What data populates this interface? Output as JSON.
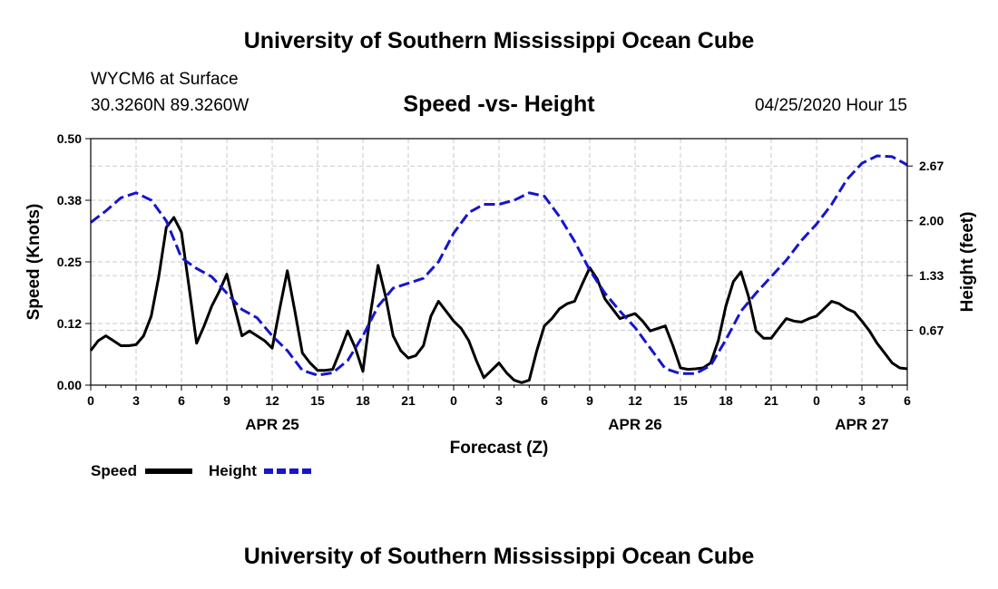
{
  "header": {
    "title": "University of Southern Mississippi Ocean Cube",
    "station": "WYCM6 at Surface",
    "coords": "30.3260N 89.3260W",
    "subtitle": "Speed -vs- Height",
    "datetime": "04/25/2020 Hour 15"
  },
  "footer": {
    "title": "University of Southern Mississippi Ocean Cube"
  },
  "colors": {
    "speed": "#000000",
    "height": "#1515cc",
    "grid": "#c8c8c8"
  },
  "chart_data": {
    "type": "line",
    "title": "Speed -vs- Height",
    "xlabel": "Forecast (Z)",
    "ylabel_left": "Speed (Knots)",
    "ylabel_right": "Height (feet)",
    "xlim": [
      0,
      54
    ],
    "ylim_left": [
      0,
      0.5
    ],
    "ylim_right": [
      0,
      3.0
    ],
    "x_ticks": [
      0,
      3,
      6,
      9,
      12,
      15,
      18,
      21,
      24,
      27,
      30,
      33,
      36,
      39,
      42,
      45,
      48,
      51,
      54
    ],
    "x_tick_labels": [
      "0",
      "3",
      "6",
      "9",
      "12",
      "15",
      "18",
      "21",
      "0",
      "3",
      "6",
      "9",
      "12",
      "15",
      "18",
      "21",
      "0",
      "3",
      "6"
    ],
    "date_labels": [
      {
        "x": 12,
        "label": "APR 25"
      },
      {
        "x": 36,
        "label": "APR 26"
      },
      {
        "x": 51,
        "label": "APR 27"
      }
    ],
    "y_left_ticks": [
      0,
      0.125,
      0.25,
      0.375,
      0.5
    ],
    "y_left_tick_labels": [
      "0.00",
      "0.12",
      "0.25",
      "0.38",
      "0.50"
    ],
    "y_right_ticks": [
      0.667,
      1.333,
      2.0,
      2.667
    ],
    "y_right_tick_labels": [
      "0.67",
      "1.33",
      "2.00",
      "2.67"
    ],
    "grid": true,
    "legend": [
      "Speed",
      "Height"
    ],
    "legend_position": "bottom-left",
    "series": [
      {
        "name": "Speed",
        "axis": "left",
        "style": "solid",
        "x": [
          0,
          0.5,
          1,
          1.5,
          2,
          2.5,
          3,
          3.5,
          4,
          4.5,
          5,
          5.5,
          6,
          6.5,
          7,
          7.5,
          8,
          8.5,
          9,
          9.5,
          10,
          10.5,
          11,
          11.5,
          12,
          12.5,
          13,
          13.5,
          14,
          14.5,
          15,
          15.5,
          16,
          16.5,
          17,
          17.5,
          18,
          18.5,
          19,
          19.5,
          20,
          20.5,
          21,
          21.5,
          22,
          22.5,
          23,
          23.5,
          24,
          24.5,
          25,
          25.5,
          26,
          26.5,
          27,
          27.5,
          28,
          28.5,
          29,
          29.5,
          30,
          30.5,
          31,
          31.5,
          32,
          32.5,
          33,
          33.5,
          34,
          34.5,
          35,
          35.5,
          36,
          36.5,
          37,
          37.5,
          38,
          38.5,
          39,
          39.5,
          40,
          40.5,
          41,
          41.5,
          42,
          42.5,
          43,
          43.5,
          44,
          44.5,
          45,
          45.5,
          46,
          46.5,
          47,
          47.5,
          48,
          48.5,
          49,
          49.5,
          50,
          50.5,
          51,
          51.5,
          52,
          52.5,
          53,
          53.5,
          54
        ],
        "values": [
          0.07,
          0.09,
          0.1,
          0.09,
          0.08,
          0.08,
          0.082,
          0.1,
          0.14,
          0.22,
          0.32,
          0.34,
          0.31,
          0.2,
          0.085,
          0.12,
          0.16,
          0.19,
          0.225,
          0.16,
          0.1,
          0.11,
          0.1,
          0.09,
          0.075,
          0.155,
          0.232,
          0.15,
          0.065,
          0.045,
          0.03,
          0.03,
          0.032,
          0.07,
          0.11,
          0.075,
          0.028,
          0.145,
          0.243,
          0.18,
          0.1,
          0.07,
          0.055,
          0.06,
          0.08,
          0.14,
          0.17,
          0.15,
          0.13,
          0.115,
          0.09,
          0.05,
          0.015,
          0.03,
          0.045,
          0.025,
          0.01,
          0.005,
          0.01,
          0.07,
          0.12,
          0.135,
          0.155,
          0.165,
          0.17,
          0.205,
          0.238,
          0.215,
          0.175,
          0.155,
          0.135,
          0.14,
          0.145,
          0.13,
          0.11,
          0.115,
          0.12,
          0.08,
          0.035,
          0.032,
          0.033,
          0.035,
          0.045,
          0.09,
          0.16,
          0.21,
          0.23,
          0.18,
          0.11,
          0.095,
          0.095,
          0.115,
          0.135,
          0.13,
          0.128,
          0.135,
          0.14,
          0.155,
          0.17,
          0.165,
          0.155,
          0.148,
          0.13,
          0.11,
          0.085,
          0.065,
          0.045,
          0.035,
          0.033
        ]
      },
      {
        "name": "Height",
        "axis": "right",
        "style": "dashed",
        "x": [
          0,
          1,
          2,
          3,
          4,
          5,
          6,
          7,
          8,
          9,
          10,
          11,
          12,
          13,
          14,
          15,
          16,
          17,
          18,
          19,
          20,
          21,
          22,
          23,
          24,
          25,
          26,
          27,
          28,
          29,
          30,
          31,
          32,
          33,
          34,
          35,
          36,
          37,
          38,
          39,
          40,
          41,
          42,
          43,
          44,
          45,
          46,
          47,
          48,
          49,
          50,
          51,
          52,
          53,
          54
        ],
        "values": [
          1.98,
          2.12,
          2.28,
          2.34,
          2.25,
          2.0,
          1.55,
          1.42,
          1.32,
          1.12,
          0.92,
          0.82,
          0.6,
          0.42,
          0.18,
          0.12,
          0.15,
          0.3,
          0.6,
          0.96,
          1.18,
          1.24,
          1.3,
          1.5,
          1.85,
          2.1,
          2.2,
          2.2,
          2.25,
          2.34,
          2.3,
          2.05,
          1.75,
          1.4,
          1.12,
          0.9,
          0.7,
          0.45,
          0.2,
          0.14,
          0.14,
          0.24,
          0.55,
          0.9,
          1.12,
          1.32,
          1.52,
          1.76,
          1.96,
          2.2,
          2.5,
          2.7,
          2.79,
          2.78,
          2.68
        ]
      }
    ]
  }
}
